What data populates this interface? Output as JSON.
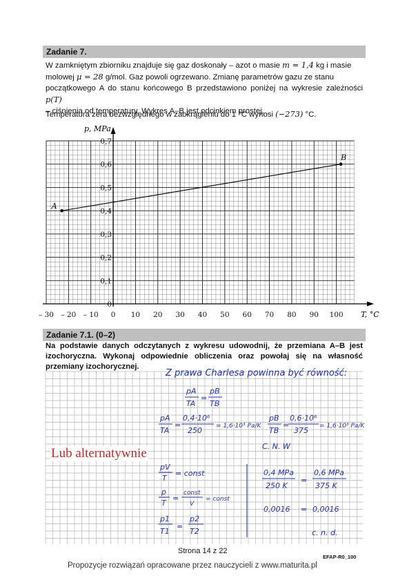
{
  "task": {
    "header": "Zadanie 7.",
    "intro_1": "W zamkniętym zbiorniku znajduje się gaz doskonały – azot o masie",
    "mass_expr": "m = 1,4",
    "intro_2": "kg i masie",
    "intro_3": "molowej",
    "molar_expr": "μ = 28",
    "intro_4": "g/mol. Gaz powoli ogrzewano. Zmianę parametrów gazu ze stanu",
    "intro_5": "początkowego A do stanu końcowego B przedstawiono poniżej na wykresie zależności",
    "func_expr": "p(T)",
    "intro_6": "– ciśnienia od temperatury. Wykres A–B jest odcinkiem prostej.",
    "abs_zero_1": "Temperatura zera bezwzględnego w zaokrągleniu do 1 °C wynosi",
    "abs_zero_val": "(−273)",
    "abs_zero_2": "°C."
  },
  "chart_data": {
    "type": "line",
    "ylabel": "p, MPa",
    "xlabel": "T, °C",
    "x_ticks": [
      "– 30",
      "– 20",
      "– 10",
      "0",
      "10",
      "20",
      "30",
      "40",
      "50",
      "60",
      "70",
      "80",
      "90",
      "100"
    ],
    "y_ticks": [
      "0",
      "0,1",
      "0,2",
      "0,3",
      "0,4",
      "0,5",
      "0,6",
      "0,7"
    ],
    "xlim": [
      -30,
      110
    ],
    "ylim": [
      0,
      0.7
    ],
    "grid": true,
    "series": [
      {
        "points": [
          {
            "label": "A",
            "x": -23,
            "y": 0.4
          },
          {
            "label": "B",
            "x": 102,
            "y": 0.6
          }
        ]
      }
    ]
  },
  "subtask": {
    "header": "Zadanie 7.1. (0–2)",
    "instruction": "Na podstawie danych odczytanych z wykresu udowodnij, że przemiana A–B jest izochoryczna. Wykonaj odpowiednie obliczenia oraz powołaj się na własność przemiany izochorycznej."
  },
  "solution": {
    "line1": "Z prawa Charlesa powinna być równość:",
    "f1_num_l": "pA",
    "f1_den_l": "TA",
    "f1_num_r": "pB",
    "f1_den_r": "TB",
    "f2_num1": "pA",
    "f2_den1": "TA",
    "f2_num2": "0,4·10⁶",
    "f2_den2": "250",
    "f2_res": "= 1,6·10³ Pa/K",
    "f3_num1": "pB",
    "f3_den1": "TB",
    "f3_num2": "0,6·10⁶",
    "f3_den2": "375",
    "f3_res": "= 1,6·10³ Pa/K",
    "cnw1": "C. N. W",
    "alt_note": "Lub alternatywnie",
    "a1_num": "pV",
    "a1_den": "T",
    "a1_rhs": "= const",
    "a2_num": "p",
    "a2_den": "T",
    "a2_num2": "const",
    "a2_den2": "V",
    "a2_rhs": "= const",
    "a3_num1": "p1",
    "a3_den1": "T1",
    "a3_num2": "p2",
    "a3_den2": "T2",
    "b1_num": "0,4 MPa",
    "b1_den": "250 K",
    "b1_num2": "0,6 MPa",
    "b1_den2": "375 K",
    "b2_l": "0,0016",
    "b2_r": "0,0016",
    "cnw2": "c. n. d."
  },
  "footer": {
    "page": "Strona 14 z 22",
    "code": "EFAP-R0_100",
    "credit": "Propozycje rozwiązań opracowane przez nauczycieli z www.maturita.pl"
  }
}
